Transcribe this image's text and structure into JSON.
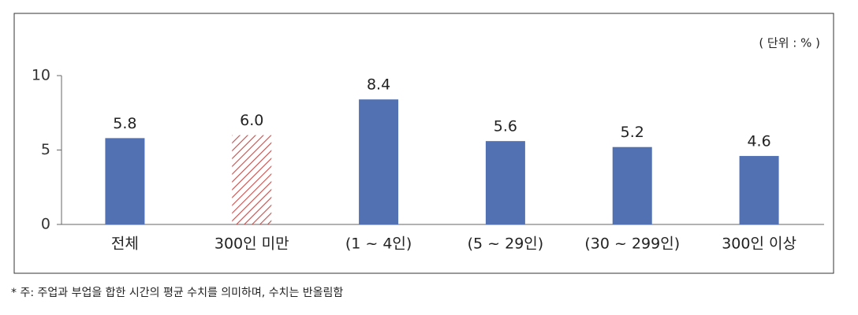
{
  "chart_data": {
    "type": "bar",
    "unit_label": "( 단위 : % )",
    "note": "* 주: 주업과 부업을 합한 시간의 평균 수치를 의미하며, 수치는 반올림함",
    "categories": [
      "전체",
      "300인 미만",
      "(1 ~ 4인)",
      "(5 ~ 29인)",
      "(30 ~ 299인)",
      "300인 이상"
    ],
    "values": [
      5.8,
      6.0,
      8.4,
      5.6,
      5.2,
      4.6
    ],
    "value_labels": [
      "5.8",
      "6.0",
      "8.4",
      "5.6",
      "5.2",
      "4.6"
    ],
    "hatched": [
      false,
      true,
      false,
      false,
      false,
      false
    ],
    "color": "#5271b3",
    "hatch_color": "#c0504d",
    "ylim": [
      0,
      10
    ],
    "yticks": [
      0,
      5,
      10
    ]
  }
}
